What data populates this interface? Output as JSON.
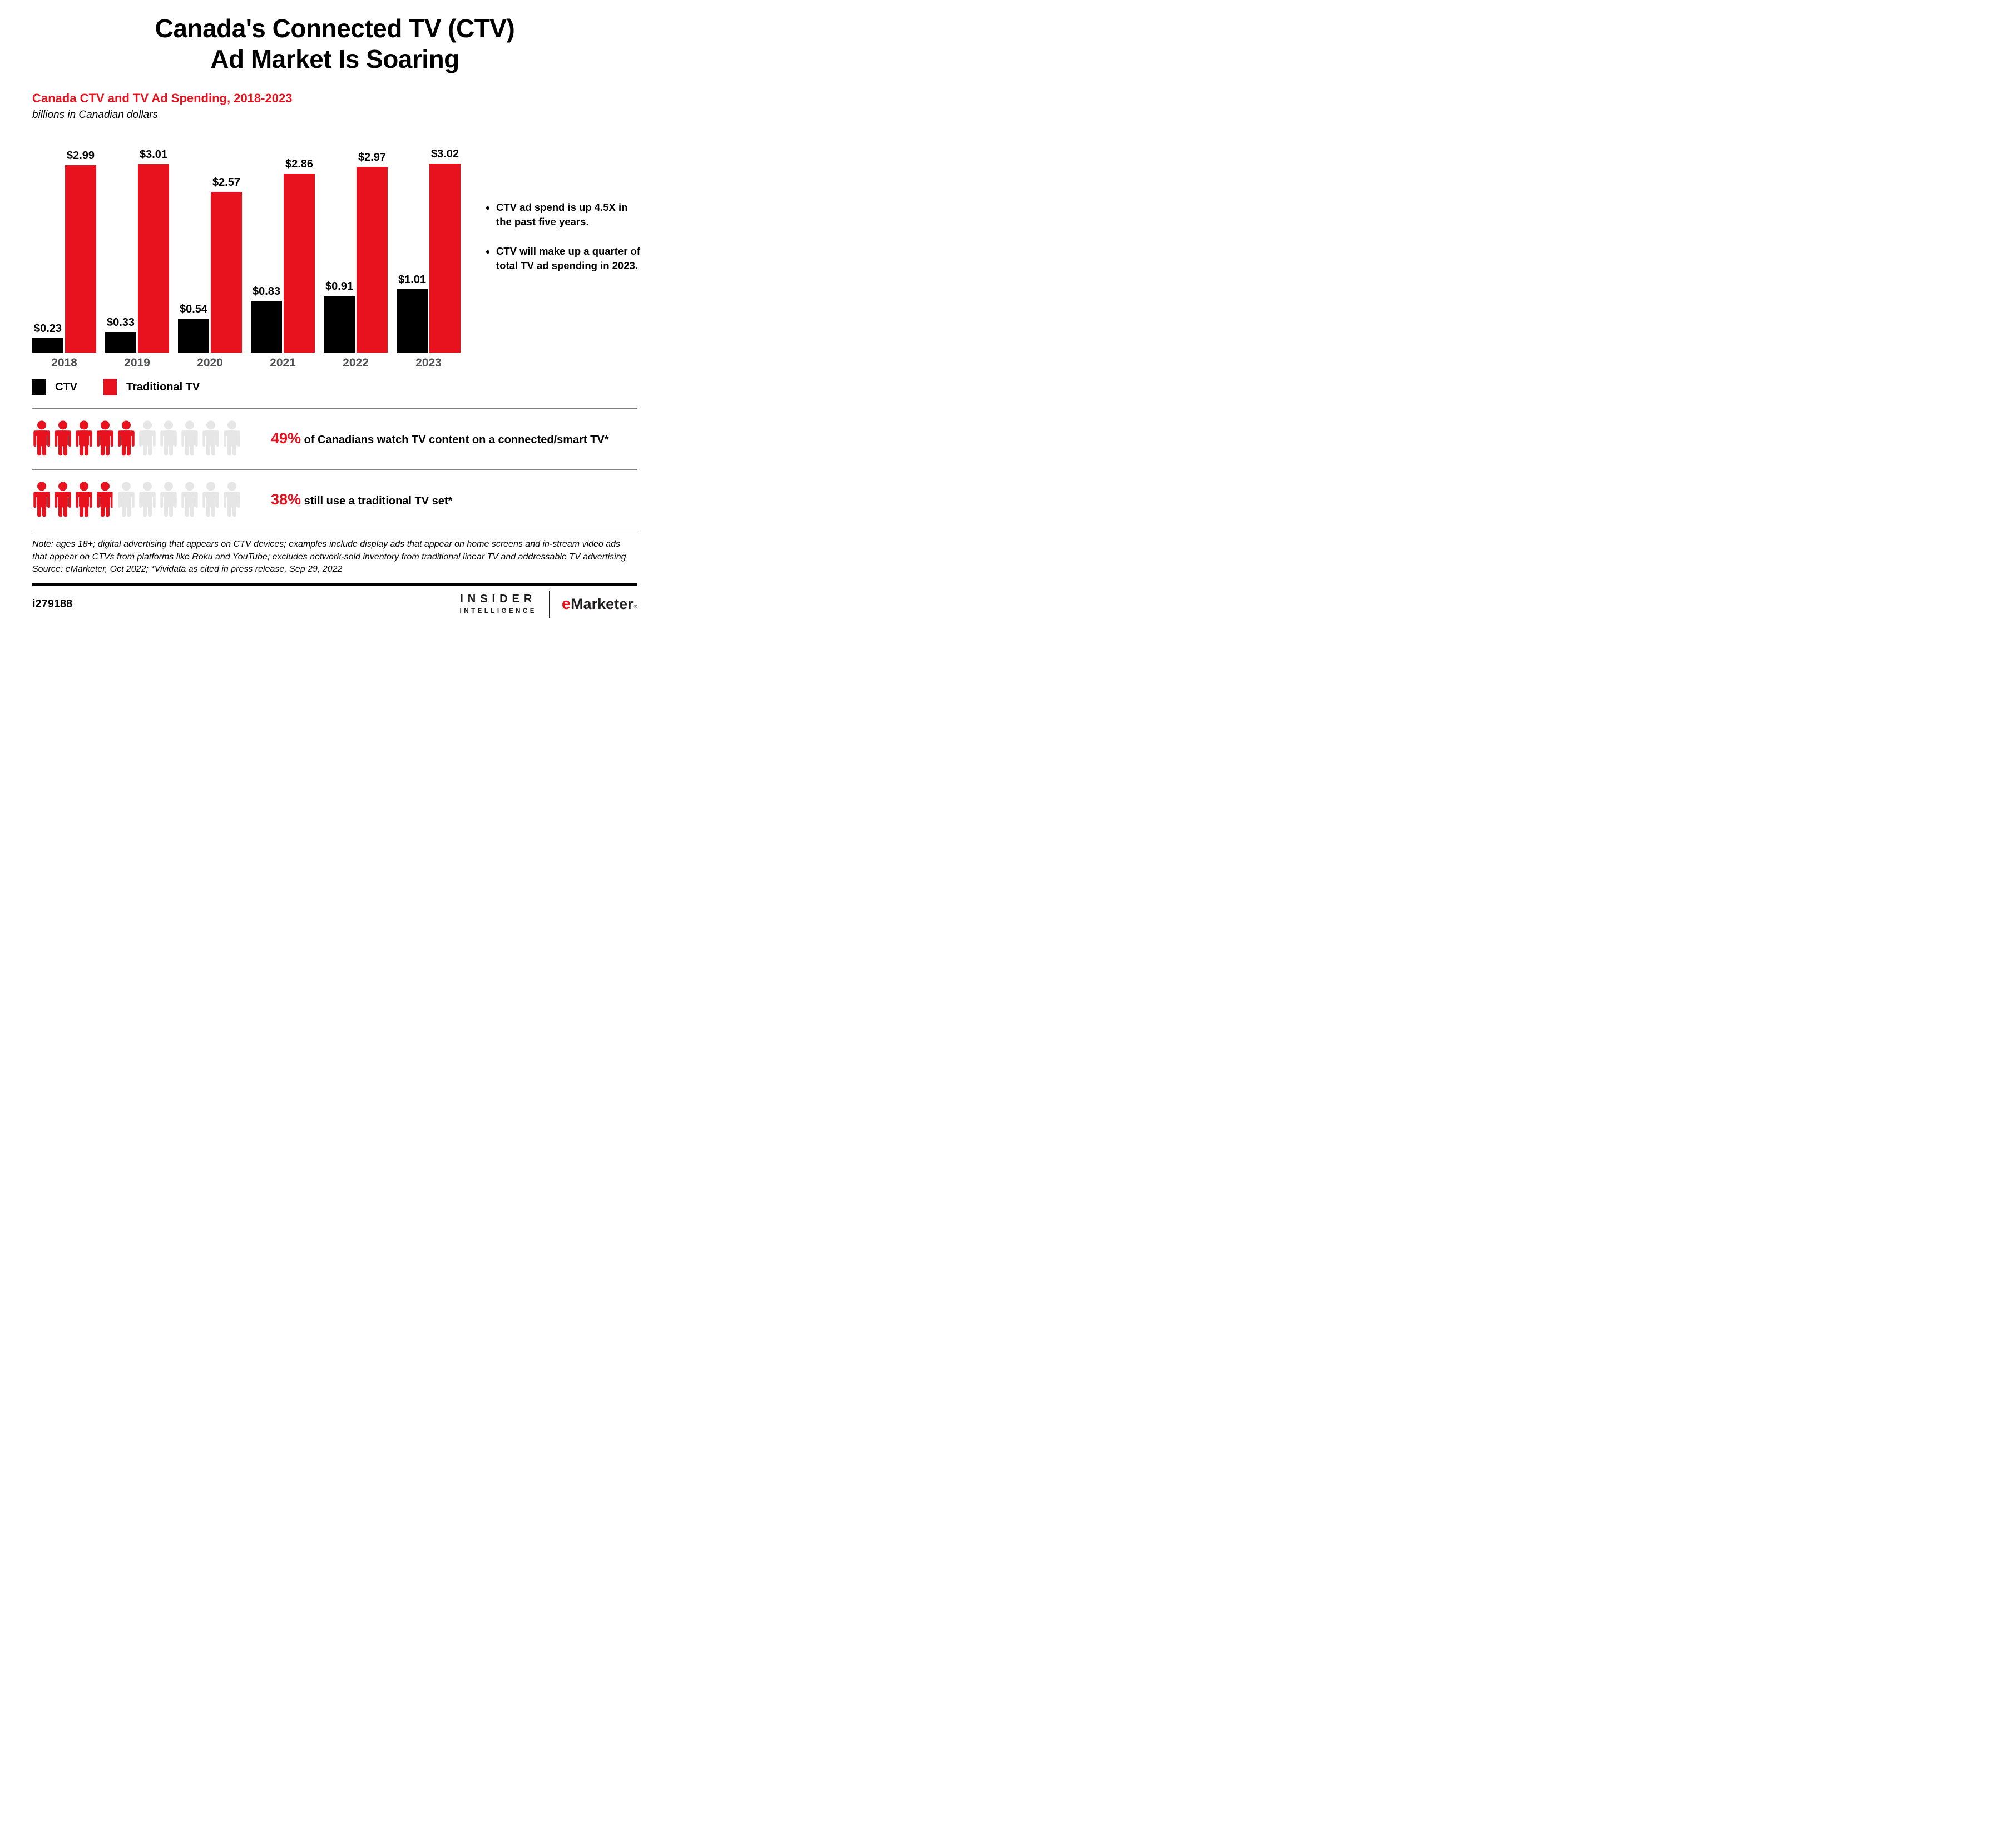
{
  "title_line1": "Canada's Connected TV (CTV)",
  "title_line2": "Ad Market Is Soaring",
  "chart_heading": "Canada CTV and TV Ad Spending, 2018-2023",
  "chart_subheading": "billions in Canadian dollars",
  "chart_data": {
    "type": "bar",
    "categories": [
      "2018",
      "2019",
      "2020",
      "2021",
      "2022",
      "2023"
    ],
    "series": [
      {
        "name": "CTV",
        "color": "#000000",
        "values": [
          0.23,
          0.33,
          0.54,
          0.83,
          0.91,
          1.01
        ]
      },
      {
        "name": "Traditional TV",
        "color": "#e8111e",
        "values": [
          2.99,
          3.01,
          2.57,
          2.86,
          2.97,
          3.02
        ]
      }
    ],
    "value_prefix": "$",
    "ylim": [
      0,
      3.02
    ],
    "grid": false,
    "legend_position": "bottom-left",
    "year_label_color": "#505154"
  },
  "bullets": [
    "CTV ad spend is up 4.5X in the past five years.",
    "CTV will make up a quarter of total TV ad spending in 2023."
  ],
  "stats": [
    {
      "pct": "49%",
      "percent_value": 49,
      "total_icons": 10,
      "text": "of Canadians watch TV content on a connected/smart TV*"
    },
    {
      "pct": "38%",
      "percent_value": 38,
      "total_icons": 10,
      "text": "still use a traditional TV set*"
    }
  ],
  "note_text": "Note: ages 18+; digital advertising that appears on CTV devices; examples include display ads that appear on home screens and in-stream video ads that appear on CTVs from platforms like Roku and YouTube; excludes network-sold inventory from traditional linear TV and addressable TV advertising",
  "source_text": "Source: eMarketer, Oct 2022; *Vividata as cited in press release, Sep 29, 2022",
  "footer": {
    "chart_id": "i279188",
    "brand_insider_line1": "INSIDER",
    "brand_insider_line2": "INTELLIGENCE",
    "brand_emarketer_e": "e",
    "brand_emarketer_rest": "Marketer",
    "registered_mark": "®"
  },
  "colors": {
    "red": "#e8111e",
    "black": "#000000",
    "person_gray": "#e6e6e6",
    "divider_gray": "#7f7f7f"
  }
}
